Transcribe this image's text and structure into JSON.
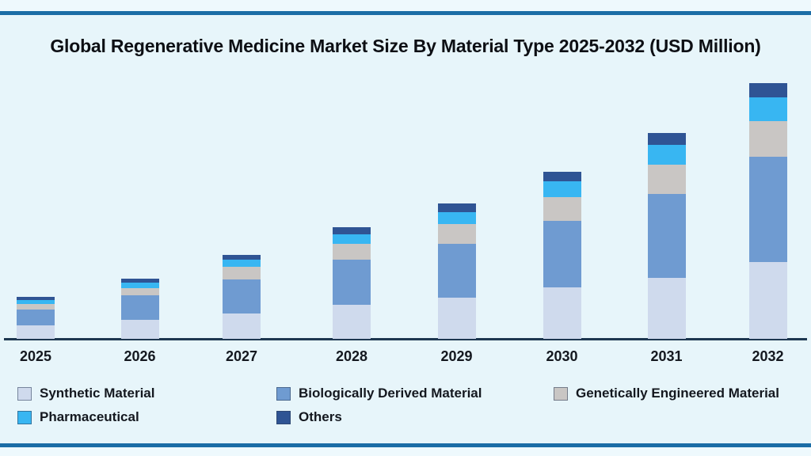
{
  "title": "Global Regenerative Medicine Market Size By Material Type 2025-2032 (USD Million)",
  "chart_data": {
    "type": "bar",
    "stacked": true,
    "title": "Global Regenerative Medicine Market Size By Material Type 2025-2032 (USD Million)",
    "xlabel": "",
    "ylabel": "",
    "unit": "USD Million (implied by title; no y-axis scale shown)",
    "categories": [
      "2025",
      "2026",
      "2027",
      "2028",
      "2029",
      "2030",
      "2031",
      "2032"
    ],
    "series": [
      {
        "name": "Synthetic Material",
        "color": "#cfdaed",
        "values": [
          17.3,
          23.5,
          32.3,
          43,
          52,
          64.7,
          76.7,
          97
        ]
      },
      {
        "name": "Biologically Derived Material",
        "color": "#6f9bd1",
        "values": [
          20,
          31,
          43,
          56.7,
          67.7,
          84,
          106.3,
          132.7
        ]
      },
      {
        "name": "Genetically Engineered Material",
        "color": "#c9c6c4",
        "values": [
          6.4,
          9.3,
          15.4,
          20.6,
          25,
          30,
          37.3,
          45
        ]
      },
      {
        "name": "Pharmaceutical",
        "color": "#38b6f2",
        "values": [
          5.3,
          7.3,
          9,
          12,
          15.6,
          20,
          25,
          30
        ]
      },
      {
        "name": "Others",
        "color": "#2f5494",
        "values": [
          4.3,
          5,
          6,
          8.4,
          11,
          12.3,
          14.4,
          18.3
        ]
      }
    ],
    "totals_estimated": [
      53.3,
      76.1,
      105.7,
      140.7,
      171.3,
      211,
      259.7,
      323
    ],
    "value_axis": {
      "visible": false,
      "gridlines": false,
      "note": "No y-axis, ticks or data labels are rendered; series values are relative heights estimated from the bars"
    },
    "legend_position": "bottom",
    "grid": false
  },
  "colors": {
    "background": "#e7f5fa",
    "outer_strip": "#eef9fd",
    "accent_rule": "#1b6da6",
    "axis_line": "#1e3750",
    "title_text": "#0d0f14",
    "label_text": "#14181f"
  }
}
